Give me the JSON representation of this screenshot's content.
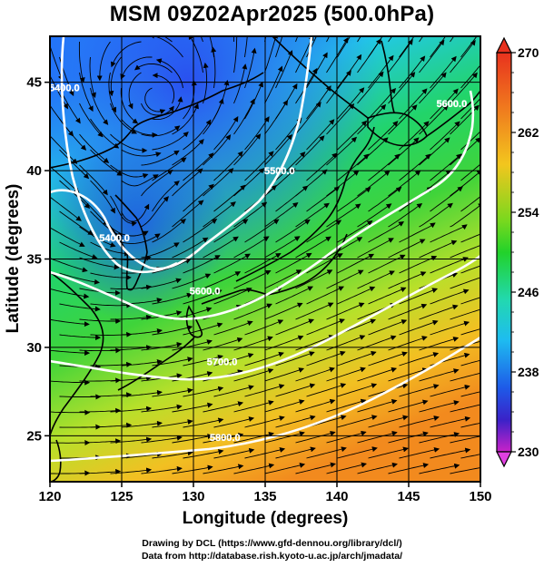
{
  "title": "MSM 09Z02Apr2025 (500.0hPa)",
  "credits": {
    "line1": "Drawing by DCL (https://www.gfd-dennou.org/library/dcl/)",
    "line2": "Data from http://database.rish.kyoto-u.ac.jp/arch/jmadata/"
  },
  "map": {
    "xlabel": "Longitude (degrees)",
    "ylabel": "Latitude  (degrees)",
    "lon_range": [
      120,
      150
    ],
    "lat_range": [
      22.4,
      47.6
    ],
    "lon_ticks": [
      "120",
      "125",
      "130",
      "135",
      "140",
      "145",
      "150"
    ],
    "lat_ticks": [
      "25",
      "30",
      "35",
      "40",
      "45"
    ],
    "grid": true,
    "contour_labels": [
      {
        "text": "5400.0",
        "lon": 121.0,
        "lat": 44.5
      },
      {
        "text": "5400.0",
        "lon": 124.5,
        "lat": 36.0
      },
      {
        "text": "5500.0",
        "lon": 136.0,
        "lat": 39.8
      },
      {
        "text": "5600.0",
        "lon": 130.8,
        "lat": 33.0
      },
      {
        "text": "5700.0",
        "lon": 132.0,
        "lat": 29.0
      },
      {
        "text": "5600.0",
        "lon": 148.0,
        "lat": 43.6
      },
      {
        "text": "5800.0",
        "lon": 132.2,
        "lat": 24.7
      }
    ]
  },
  "colorbar": {
    "ticks": [
      "270",
      "262",
      "254",
      "246",
      "238",
      "230"
    ],
    "range": [
      230,
      270
    ]
  }
}
